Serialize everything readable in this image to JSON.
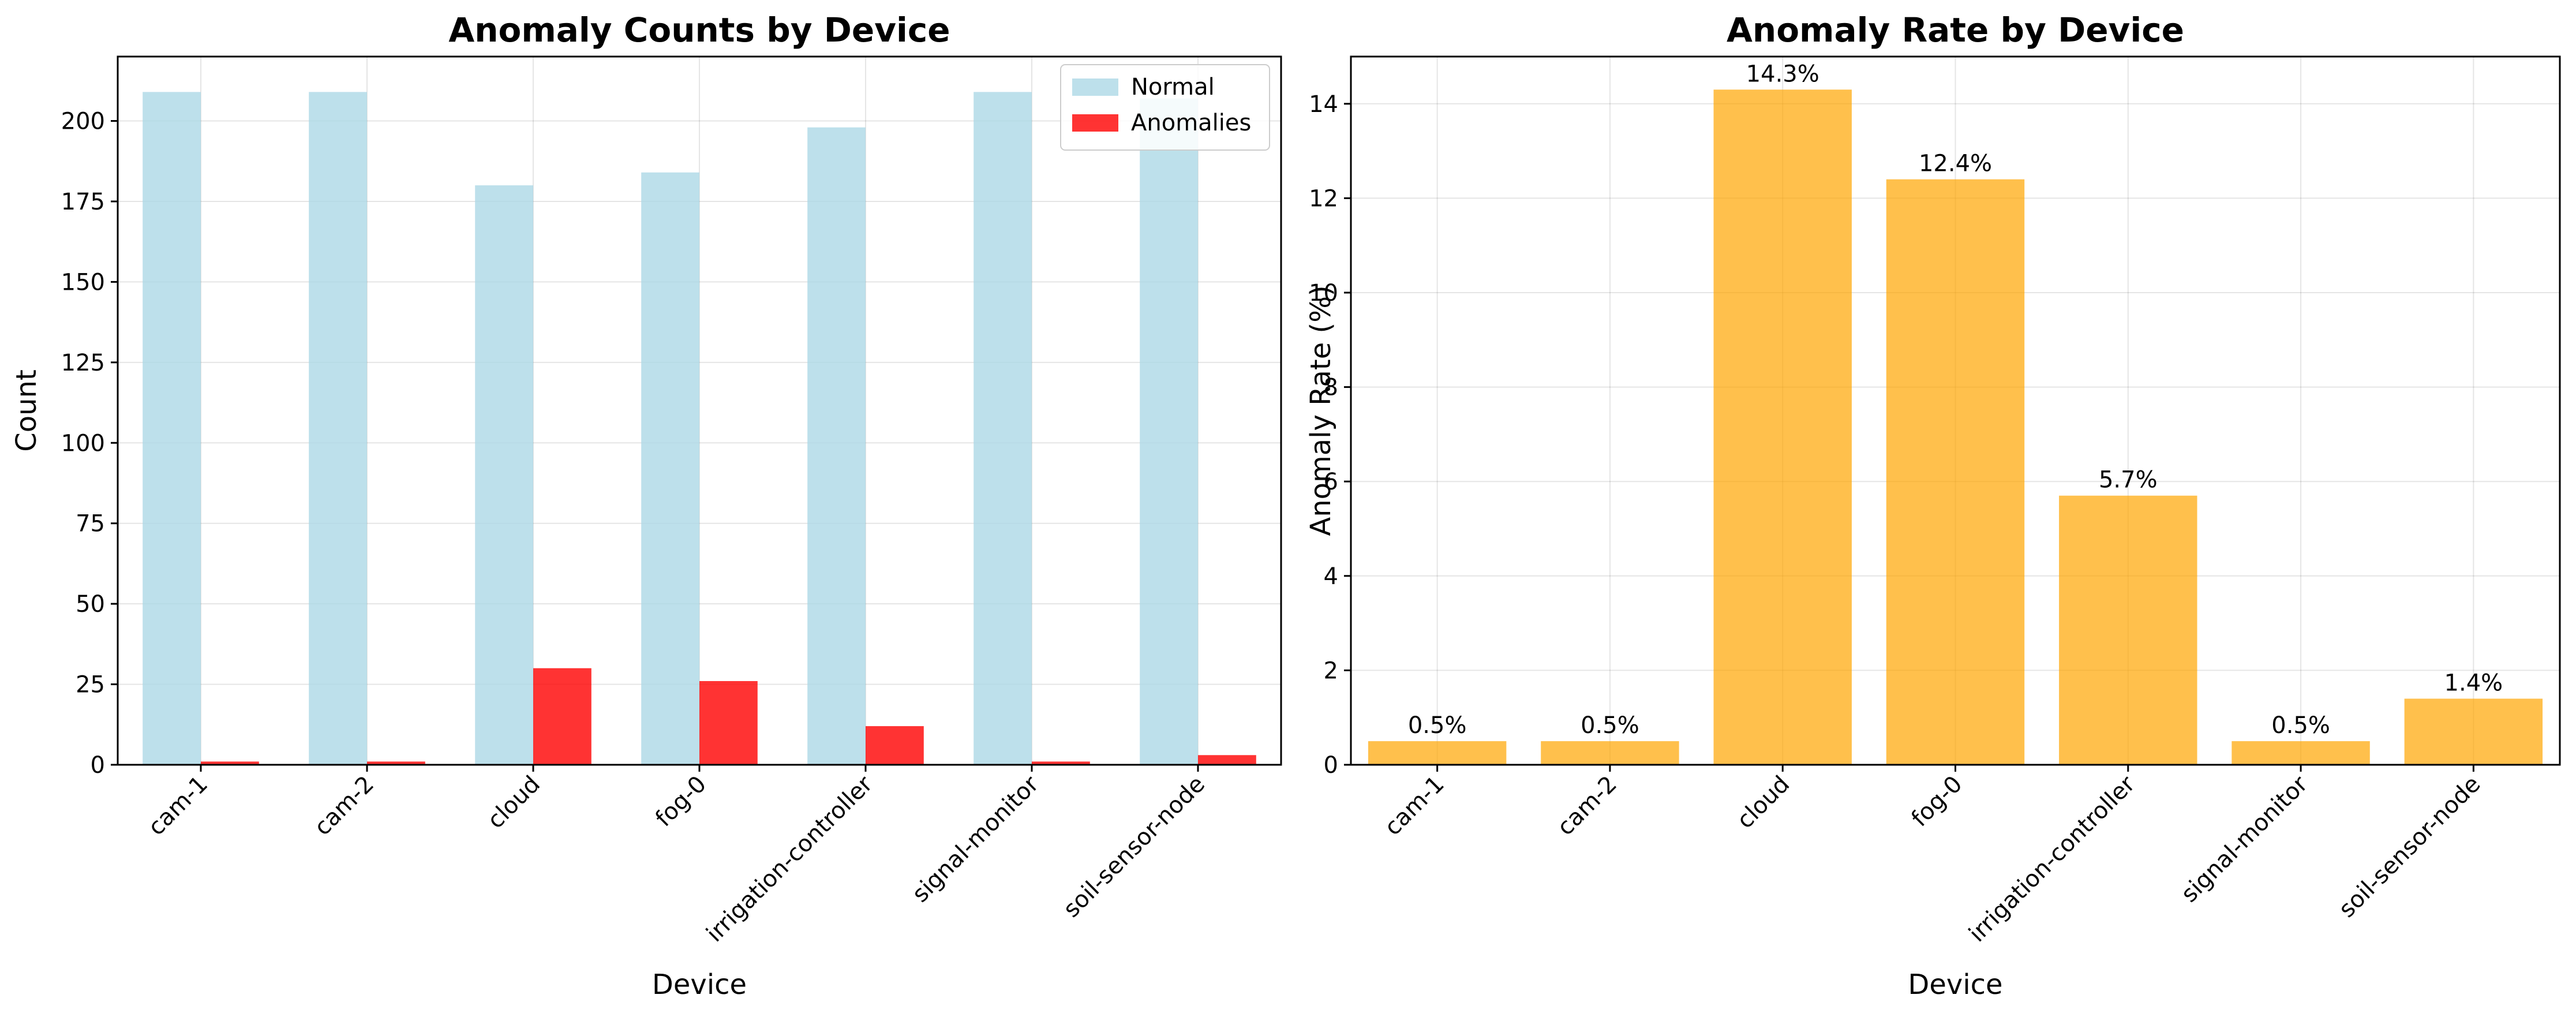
{
  "chart_data": [
    {
      "type": "bar",
      "title": "Anomaly Counts by Device",
      "xlabel": "Device",
      "ylabel": "Count",
      "categories": [
        "cam-1",
        "cam-2",
        "cloud",
        "fog-0",
        "irrigation-controller",
        "signal-monitor",
        "soil-sensor-node"
      ],
      "series": [
        {
          "name": "Normal",
          "color": "#add8e6",
          "values": [
            209,
            209,
            180,
            184,
            198,
            209,
            207
          ]
        },
        {
          "name": "Anomalies",
          "color": "#ff0000",
          "values": [
            1,
            1,
            30,
            26,
            12,
            1,
            3
          ]
        }
      ],
      "ylim": [
        0,
        220
      ],
      "yticks": [
        0,
        25,
        50,
        75,
        100,
        125,
        150,
        175,
        200
      ],
      "grid": true,
      "legend_position": "top-right"
    },
    {
      "type": "bar",
      "title": "Anomaly Rate by Device",
      "xlabel": "Device",
      "ylabel": "Anomaly Rate (%)",
      "categories": [
        "cam-1",
        "cam-2",
        "cloud",
        "fog-0",
        "irrigation-controller",
        "signal-monitor",
        "soil-sensor-node"
      ],
      "values": [
        0.5,
        0.5,
        14.3,
        12.4,
        5.7,
        0.5,
        1.4
      ],
      "data_labels": [
        "0.5%",
        "0.5%",
        "14.3%",
        "12.4%",
        "5.7%",
        "0.5%",
        "1.4%"
      ],
      "color": "#ffa500",
      "ylim": [
        0,
        15
      ],
      "yticks": [
        0,
        2,
        4,
        6,
        8,
        10,
        12,
        14
      ],
      "grid": true
    }
  ]
}
